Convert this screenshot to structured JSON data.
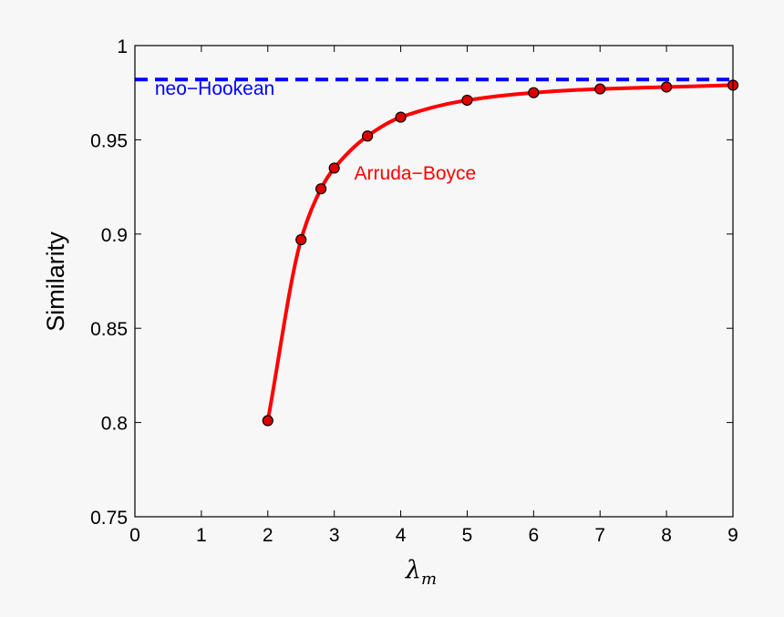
{
  "chart_data": {
    "type": "line",
    "title": "",
    "xlabel": "λ",
    "xlabel_subscript": "m",
    "ylabel": "Similarity",
    "xlim": [
      0,
      9
    ],
    "ylim": [
      0.75,
      1
    ],
    "x_ticks": [
      "0",
      "1",
      "2",
      "3",
      "4",
      "5",
      "6",
      "7",
      "8",
      "9"
    ],
    "y_ticks": [
      "0.75",
      "0.8",
      "0.85",
      "0.9",
      "0.95",
      "1"
    ],
    "grid": false,
    "legend": "none",
    "series": [
      {
        "name": "neo−Hookean",
        "style": "dashed",
        "color": "#0000ff",
        "x": [
          0,
          9
        ],
        "y": [
          0.982,
          0.982
        ]
      },
      {
        "name": "Arruda−Boyce",
        "style": "solid-with-markers",
        "color": "#ff0000",
        "marker_color": "#dd0000",
        "x": [
          2,
          2.5,
          2.8,
          3,
          3.5,
          4,
          5,
          6,
          7,
          8,
          9
        ],
        "y": [
          0.801,
          0.897,
          0.924,
          0.935,
          0.952,
          0.962,
          0.971,
          0.975,
          0.977,
          0.978,
          0.979
        ]
      }
    ],
    "annotations": [
      {
        "text": "neo−Hookean",
        "color": "#0000ff",
        "x": 0.3,
        "y": 0.974
      },
      {
        "text": "Arruda−Boyce",
        "color": "#ff0000",
        "x": 3.3,
        "y": 0.929
      }
    ]
  }
}
